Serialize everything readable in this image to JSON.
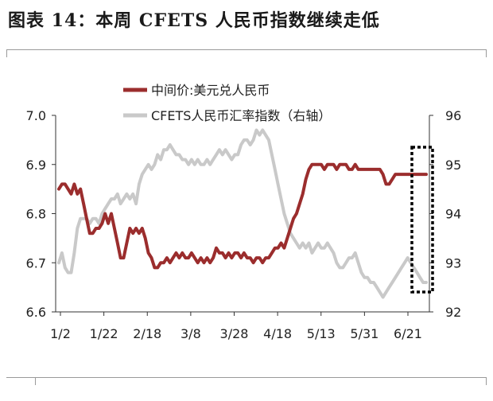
{
  "header": {
    "title": "图表 14：本周 CFETS 人民币指数继续走低"
  },
  "colors": {
    "line1": "#9B2D2D",
    "line2": "#C9C9C9",
    "axis": "#333333",
    "box": "#000000"
  },
  "chart_data": {
    "type": "line",
    "title": "图表 14：本周 CFETS 人民币指数继续走低",
    "x_tick_labels": [
      "1/2",
      "1/22",
      "2/18",
      "3/8",
      "3/28",
      "4/18",
      "5/13",
      "5/31",
      "6/21"
    ],
    "left_axis": {
      "ticks": [
        "6.6",
        "6.7",
        "6.8",
        "6.9",
        "7.0"
      ],
      "ylim": [
        6.6,
        7.0
      ]
    },
    "right_axis": {
      "ticks": [
        "92",
        "93",
        "94",
        "95",
        "96"
      ],
      "ylim": [
        92,
        96
      ]
    },
    "legend_position": "top-center",
    "grid": false,
    "series": [
      {
        "name": "中间价:美元兑人民币",
        "axis": "left",
        "x": [
          0,
          1,
          2,
          3,
          4,
          5,
          6,
          7,
          8,
          9,
          10,
          11,
          12,
          13,
          14,
          15,
          16,
          17,
          18,
          19,
          20,
          21,
          22,
          23,
          24,
          25,
          26,
          27,
          28,
          29,
          30,
          31,
          32,
          33,
          34,
          35,
          36,
          37,
          38,
          39,
          40,
          41,
          42,
          43,
          44,
          45,
          46,
          47,
          48,
          49,
          50,
          51,
          52,
          53,
          54,
          55,
          56,
          57,
          58,
          59,
          60,
          61,
          62,
          63,
          64,
          65,
          66,
          67,
          68,
          69,
          70,
          71,
          72,
          73,
          74,
          75,
          76,
          77,
          78,
          79,
          80,
          81,
          82,
          83,
          84,
          85,
          86,
          87,
          88,
          89,
          90,
          91,
          92,
          93,
          94,
          95,
          96,
          97,
          98,
          99,
          100,
          101,
          102,
          103,
          104,
          105,
          106,
          107,
          108,
          109,
          110,
          111,
          112,
          113,
          114,
          115,
          116,
          117,
          118,
          119
        ],
        "values": [
          6.85,
          6.86,
          6.86,
          6.85,
          6.84,
          6.86,
          6.84,
          6.85,
          6.82,
          6.79,
          6.76,
          6.76,
          6.77,
          6.77,
          6.78,
          6.8,
          6.78,
          6.8,
          6.77,
          6.74,
          6.71,
          6.71,
          6.74,
          6.77,
          6.76,
          6.77,
          6.76,
          6.77,
          6.75,
          6.72,
          6.71,
          6.69,
          6.69,
          6.7,
          6.7,
          6.71,
          6.7,
          6.71,
          6.72,
          6.71,
          6.72,
          6.71,
          6.71,
          6.72,
          6.71,
          6.7,
          6.71,
          6.7,
          6.71,
          6.7,
          6.71,
          6.73,
          6.72,
          6.72,
          6.71,
          6.72,
          6.71,
          6.72,
          6.72,
          6.71,
          6.72,
          6.71,
          6.71,
          6.7,
          6.71,
          6.71,
          6.7,
          6.71,
          6.71,
          6.72,
          6.73,
          6.73,
          6.74,
          6.73,
          6.75,
          6.77,
          6.79,
          6.8,
          6.82,
          6.84,
          6.87,
          6.89,
          6.9,
          6.9,
          6.9,
          6.9,
          6.89,
          6.9,
          6.9,
          6.9,
          6.89,
          6.9,
          6.9,
          6.9,
          6.89,
          6.89,
          6.9,
          6.89,
          6.89,
          6.89,
          6.89,
          6.89,
          6.89,
          6.89,
          6.89,
          6.88,
          6.86,
          6.86,
          6.87,
          6.88,
          6.88,
          6.88,
          6.88,
          6.88,
          6.88,
          6.88,
          6.88,
          6.88,
          6.88,
          6.88
        ]
      },
      {
        "name": "CFETS人民币汇率指数（右轴）",
        "axis": "right",
        "x": [
          0,
          1,
          2,
          3,
          4,
          5,
          6,
          7,
          8,
          9,
          10,
          11,
          12,
          13,
          14,
          15,
          16,
          17,
          18,
          19,
          20,
          21,
          22,
          23,
          24,
          25,
          26,
          27,
          28,
          29,
          30,
          31,
          32,
          33,
          34,
          35,
          36,
          37,
          38,
          39,
          40,
          41,
          42,
          43,
          44,
          45,
          46,
          47,
          48,
          49,
          50,
          51,
          52,
          53,
          54,
          55,
          56,
          57,
          58,
          59,
          60,
          61,
          62,
          63,
          64,
          65,
          66,
          67,
          68,
          69,
          70,
          71,
          72,
          73,
          74,
          75,
          76,
          77,
          78,
          79,
          80,
          81,
          82,
          83,
          84,
          85,
          86,
          87,
          88,
          89,
          90,
          91,
          92,
          93,
          94,
          95,
          96,
          97,
          98,
          99,
          100,
          101,
          102,
          103,
          104,
          105,
          106,
          107,
          108,
          109,
          110,
          111,
          112,
          113,
          114,
          115,
          116,
          117,
          118,
          119
        ],
        "values": [
          93.0,
          93.2,
          92.9,
          92.8,
          92.8,
          93.2,
          93.7,
          93.9,
          93.9,
          93.9,
          93.8,
          93.9,
          93.9,
          93.8,
          94.0,
          94.1,
          94.2,
          94.3,
          94.3,
          94.4,
          94.2,
          94.3,
          94.4,
          94.3,
          94.4,
          94.2,
          94.6,
          94.8,
          94.9,
          95.0,
          94.9,
          95.0,
          95.2,
          95.1,
          95.3,
          95.3,
          95.4,
          95.3,
          95.2,
          95.2,
          95.1,
          95.1,
          95.0,
          95.1,
          95.0,
          95.1,
          95.0,
          95.0,
          95.1,
          95.0,
          95.1,
          95.2,
          95.3,
          95.2,
          95.3,
          95.2,
          95.1,
          95.2,
          95.2,
          95.4,
          95.5,
          95.5,
          95.4,
          95.5,
          95.7,
          95.6,
          95.7,
          95.6,
          95.5,
          95.2,
          94.9,
          94.6,
          94.3,
          94.0,
          93.8,
          93.6,
          93.5,
          93.4,
          93.3,
          93.4,
          93.3,
          93.4,
          93.2,
          93.3,
          93.4,
          93.3,
          93.3,
          93.4,
          93.3,
          93.2,
          93.0,
          92.9,
          92.9,
          93.0,
          93.1,
          93.1,
          93.2,
          93.0,
          92.8,
          92.7,
          92.7,
          92.6,
          92.6,
          92.5,
          92.4,
          92.3,
          92.4,
          92.5,
          92.6,
          92.7,
          92.8,
          92.9,
          93.0,
          93.1,
          93.0,
          92.9,
          92.8,
          92.7,
          92.6,
          92.6
        ]
      }
    ],
    "annotation": "dotted-box-highlight-latest-week"
  }
}
